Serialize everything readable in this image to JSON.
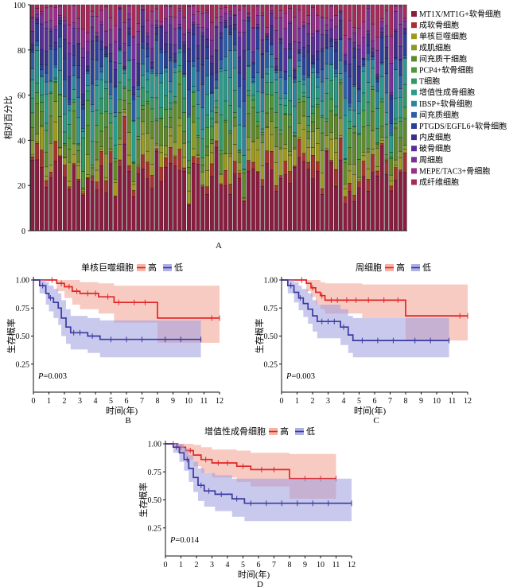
{
  "chart_data": [
    {
      "type": "bar",
      "stacked": true,
      "panel_label": "A",
      "ylabel": "相对百分比",
      "ylim": [
        0,
        100
      ],
      "yticks": [
        "0",
        "20",
        "40",
        "60",
        "80",
        "100"
      ],
      "n_samples": 82,
      "legend_position": "right",
      "series": [
        {
          "name": "MT1X/MT1G+软骨细胞",
          "color": "#8b1c3f"
        },
        {
          "name": "成软骨细胞",
          "color": "#a8322c"
        },
        {
          "name": "单核巨噬细胞",
          "color": "#9e9a1e"
        },
        {
          "name": "成肌细胞",
          "color": "#8a9a2a"
        },
        {
          "name": "间充质干细胞",
          "color": "#5f8a2a"
        },
        {
          "name": "PCP4+软骨细胞",
          "color": "#4e9a3a"
        },
        {
          "name": "T细胞",
          "color": "#2f9a66"
        },
        {
          "name": "增值性成骨细胞",
          "color": "#2a9a8a"
        },
        {
          "name": "IBSP+软骨细胞",
          "color": "#2a86a0"
        },
        {
          "name": "间充质细胞",
          "color": "#2a5fa8"
        },
        {
          "name": "PTGDS/EGFL6+软骨细胞",
          "color": "#2a3f9a"
        },
        {
          "name": "内皮细胞",
          "color": "#3a2f8a"
        },
        {
          "name": "破骨细胞",
          "color": "#5a2f9a"
        },
        {
          "name": "周细胞",
          "color": "#7a2f9a"
        },
        {
          "name": "MEPE/TAC3+骨细胞",
          "color": "#9a2f8a"
        },
        {
          "name": "成纤维细胞",
          "color": "#a82a5a"
        }
      ]
    },
    {
      "type": "line",
      "subtype": "kaplan-meier",
      "panel_label": "B",
      "title": "单核巨噬细胞",
      "xlabel": "时间(年)",
      "ylabel": "生存概率",
      "xlim": [
        0,
        12
      ],
      "ylim": [
        0.25,
        1.0
      ],
      "xticks": [
        "0",
        "1",
        "2",
        "3",
        "4",
        "5",
        "6",
        "7",
        "8",
        "9",
        "10",
        "11",
        "12"
      ],
      "yticks": [
        "0.25",
        "0.50",
        "0.75",
        "1.00"
      ],
      "annotation": "P=0.003",
      "series": [
        {
          "name": "高",
          "color": "#e02626",
          "band_color": "#f2a090",
          "steps": [
            [
              0,
              1.0
            ],
            [
              1.5,
              0.97
            ],
            [
              2.0,
              0.94
            ],
            [
              2.5,
              0.9
            ],
            [
              3.0,
              0.88
            ],
            [
              4.2,
              0.85
            ],
            [
              5.2,
              0.8
            ],
            [
              8.0,
              0.66
            ],
            [
              12.0,
              0.66
            ]
          ],
          "lower": [
            [
              0,
              1.0
            ],
            [
              1.5,
              0.9
            ],
            [
              2.0,
              0.84
            ],
            [
              2.5,
              0.78
            ],
            [
              3.0,
              0.74
            ],
            [
              4.2,
              0.7
            ],
            [
              5.2,
              0.62
            ],
            [
              8.0,
              0.44
            ],
            [
              12.0,
              0.44
            ]
          ],
          "upper": [
            [
              0,
              1.0
            ],
            [
              1.5,
              1.0
            ],
            [
              2.0,
              1.0
            ],
            [
              2.5,
              1.0
            ],
            [
              3.0,
              0.98
            ],
            [
              4.2,
              0.97
            ],
            [
              5.2,
              0.95
            ],
            [
              8.0,
              0.95
            ],
            [
              12.0,
              0.95
            ]
          ],
          "censors": [
            1.2,
            1.8,
            2.3,
            2.8,
            3.5,
            4.0,
            4.8,
            5.5,
            6.5,
            7.2,
            11.5,
            12.0
          ]
        },
        {
          "name": "低",
          "color": "#3a3aa0",
          "band_color": "#9c9ce0",
          "steps": [
            [
              0,
              1.0
            ],
            [
              0.4,
              0.95
            ],
            [
              0.8,
              0.88
            ],
            [
              1.0,
              0.84
            ],
            [
              1.3,
              0.8
            ],
            [
              1.6,
              0.75
            ],
            [
              1.8,
              0.66
            ],
            [
              2.1,
              0.58
            ],
            [
              2.4,
              0.53
            ],
            [
              3.5,
              0.5
            ],
            [
              4.3,
              0.47
            ],
            [
              10.8,
              0.47
            ]
          ],
          "lower": [
            [
              0,
              1.0
            ],
            [
              0.4,
              0.88
            ],
            [
              0.8,
              0.78
            ],
            [
              1.0,
              0.72
            ],
            [
              1.3,
              0.66
            ],
            [
              1.6,
              0.6
            ],
            [
              1.8,
              0.5
            ],
            [
              2.1,
              0.43
            ],
            [
              2.4,
              0.38
            ],
            [
              3.5,
              0.35
            ],
            [
              4.3,
              0.31
            ],
            [
              10.8,
              0.31
            ]
          ],
          "upper": [
            [
              0,
              1.0
            ],
            [
              0.4,
              1.0
            ],
            [
              0.8,
              0.98
            ],
            [
              1.0,
              0.95
            ],
            [
              1.3,
              0.92
            ],
            [
              1.6,
              0.88
            ],
            [
              1.8,
              0.82
            ],
            [
              2.1,
              0.74
            ],
            [
              2.4,
              0.68
            ],
            [
              3.5,
              0.66
            ],
            [
              4.3,
              0.64
            ],
            [
              10.8,
              0.64
            ]
          ],
          "censors": [
            0.6,
            1.1,
            2.6,
            3.0,
            3.8,
            5.0,
            6.0,
            7.0,
            8.5,
            9.5,
            10.8
          ]
        }
      ]
    },
    {
      "type": "line",
      "subtype": "kaplan-meier",
      "panel_label": "C",
      "title": "周细胞",
      "xlabel": "时间(年)",
      "ylabel": "生存概率",
      "xlim": [
        0,
        12
      ],
      "ylim": [
        0.25,
        1.0
      ],
      "xticks": [
        "0",
        "1",
        "2",
        "3",
        "4",
        "5",
        "6",
        "7",
        "8",
        "9",
        "10",
        "11",
        "12"
      ],
      "yticks": [
        "0.25",
        "0.50",
        "0.75",
        "1.00"
      ],
      "annotation": "P=0.003",
      "series": [
        {
          "name": "高",
          "color": "#e02626",
          "band_color": "#f2a090",
          "steps": [
            [
              0,
              1.0
            ],
            [
              1.6,
              0.97
            ],
            [
              1.9,
              0.93
            ],
            [
              2.2,
              0.89
            ],
            [
              2.5,
              0.86
            ],
            [
              2.8,
              0.82
            ],
            [
              5.2,
              0.82
            ],
            [
              8.0,
              0.68
            ],
            [
              12.0,
              0.68
            ]
          ],
          "lower": [
            [
              0,
              1.0
            ],
            [
              1.6,
              0.9
            ],
            [
              1.9,
              0.85
            ],
            [
              2.2,
              0.78
            ],
            [
              2.5,
              0.74
            ],
            [
              2.8,
              0.7
            ],
            [
              5.2,
              0.66
            ],
            [
              8.0,
              0.46
            ],
            [
              12.0,
              0.46
            ]
          ],
          "upper": [
            [
              0,
              1.0
            ],
            [
              1.6,
              1.0
            ],
            [
              1.9,
              1.0
            ],
            [
              2.2,
              1.0
            ],
            [
              2.5,
              0.98
            ],
            [
              2.8,
              0.97
            ],
            [
              5.2,
              0.96
            ],
            [
              8.0,
              0.96
            ],
            [
              12.0,
              0.96
            ]
          ],
          "censors": [
            1.3,
            2.0,
            2.6,
            3.2,
            3.6,
            4.2,
            4.8,
            5.6,
            6.6,
            7.5,
            11.5,
            12.0
          ]
        },
        {
          "name": "低",
          "color": "#3a3aa0",
          "band_color": "#9c9ce0",
          "steps": [
            [
              0,
              1.0
            ],
            [
              0.4,
              0.95
            ],
            [
              0.8,
              0.89
            ],
            [
              1.1,
              0.84
            ],
            [
              1.4,
              0.79
            ],
            [
              1.7,
              0.74
            ],
            [
              2.0,
              0.68
            ],
            [
              2.3,
              0.63
            ],
            [
              3.8,
              0.58
            ],
            [
              4.3,
              0.51
            ],
            [
              4.6,
              0.46
            ],
            [
              10.8,
              0.46
            ]
          ],
          "lower": [
            [
              0,
              1.0
            ],
            [
              0.4,
              0.88
            ],
            [
              0.8,
              0.8
            ],
            [
              1.1,
              0.73
            ],
            [
              1.4,
              0.67
            ],
            [
              1.7,
              0.61
            ],
            [
              2.0,
              0.54
            ],
            [
              2.3,
              0.48
            ],
            [
              3.8,
              0.42
            ],
            [
              4.3,
              0.35
            ],
            [
              4.6,
              0.31
            ],
            [
              10.8,
              0.31
            ]
          ],
          "upper": [
            [
              0,
              1.0
            ],
            [
              0.4,
              1.0
            ],
            [
              0.8,
              0.98
            ],
            [
              1.1,
              0.95
            ],
            [
              1.3,
              0.92
            ],
            [
              1.7,
              0.88
            ],
            [
              2.0,
              0.82
            ],
            [
              2.3,
              0.78
            ],
            [
              3.8,
              0.74
            ],
            [
              4.3,
              0.68
            ],
            [
              4.6,
              0.66
            ],
            [
              10.8,
              0.66
            ]
          ],
          "censors": [
            0.6,
            1.2,
            2.6,
            3.0,
            3.4,
            4.0,
            5.2,
            6.2,
            7.2,
            8.6,
            9.6,
            10.8
          ]
        }
      ]
    },
    {
      "type": "line",
      "subtype": "kaplan-meier",
      "panel_label": "D",
      "title": "增值性成骨细胞",
      "xlabel": "时间(年)",
      "ylabel": "生存概率",
      "xlim": [
        0,
        12
      ],
      "ylim": [
        0.25,
        1.0
      ],
      "xticks": [
        "0",
        "1",
        "2",
        "3",
        "4",
        "5",
        "6",
        "7",
        "8",
        "9",
        "10",
        "11",
        "12"
      ],
      "yticks": [
        "0.25",
        "0.50",
        "0.75",
        "1.00"
      ],
      "annotation": "P=0.014",
      "series": [
        {
          "name": "高",
          "color": "#e02626",
          "band_color": "#f2a090",
          "steps": [
            [
              0,
              1.0
            ],
            [
              0.8,
              0.97
            ],
            [
              1.3,
              0.94
            ],
            [
              1.8,
              0.9
            ],
            [
              2.3,
              0.86
            ],
            [
              3.0,
              0.83
            ],
            [
              4.6,
              0.8
            ],
            [
              5.5,
              0.77
            ],
            [
              8.0,
              0.69
            ],
            [
              11.0,
              0.69
            ]
          ],
          "lower": [
            [
              0,
              1.0
            ],
            [
              0.8,
              0.92
            ],
            [
              1.3,
              0.86
            ],
            [
              1.8,
              0.8
            ],
            [
              2.3,
              0.74
            ],
            [
              3.0,
              0.7
            ],
            [
              4.6,
              0.66
            ],
            [
              5.5,
              0.62
            ],
            [
              8.0,
              0.51
            ],
            [
              11.0,
              0.51
            ]
          ],
          "upper": [
            [
              0,
              1.0
            ],
            [
              0.8,
              1.0
            ],
            [
              1.3,
              1.0
            ],
            [
              1.8,
              0.99
            ],
            [
              2.3,
              0.97
            ],
            [
              3.0,
              0.95
            ],
            [
              4.6,
              0.94
            ],
            [
              5.5,
              0.92
            ],
            [
              8.0,
              0.91
            ],
            [
              11.0,
              0.91
            ]
          ],
          "censors": [
            0.5,
            1.0,
            1.6,
            2.6,
            3.4,
            4.0,
            5.0,
            6.2,
            7.0,
            9.0,
            10.0,
            11.0
          ]
        },
        {
          "name": "低",
          "color": "#3a3aa0",
          "band_color": "#9c9ce0",
          "steps": [
            [
              0,
              1.0
            ],
            [
              0.5,
              0.97
            ],
            [
              0.9,
              0.92
            ],
            [
              1.2,
              0.86
            ],
            [
              1.5,
              0.78
            ],
            [
              1.8,
              0.7
            ],
            [
              2.1,
              0.63
            ],
            [
              2.5,
              0.58
            ],
            [
              3.2,
              0.55
            ],
            [
              4.3,
              0.51
            ],
            [
              5.1,
              0.47
            ],
            [
              12.0,
              0.47
            ]
          ],
          "lower": [
            [
              0,
              1.0
            ],
            [
              0.5,
              0.92
            ],
            [
              0.9,
              0.84
            ],
            [
              1.2,
              0.76
            ],
            [
              1.5,
              0.66
            ],
            [
              1.8,
              0.57
            ],
            [
              2.1,
              0.49
            ],
            [
              2.5,
              0.44
            ],
            [
              3.2,
              0.4
            ],
            [
              4.3,
              0.35
            ],
            [
              5.1,
              0.31
            ],
            [
              12.0,
              0.31
            ]
          ],
          "upper": [
            [
              0,
              1.0
            ],
            [
              0.5,
              1.0
            ],
            [
              0.9,
              1.0
            ],
            [
              1.2,
              0.96
            ],
            [
              1.5,
              0.9
            ],
            [
              1.8,
              0.84
            ],
            [
              2.1,
              0.78
            ],
            [
              2.5,
              0.74
            ],
            [
              3.2,
              0.72
            ],
            [
              4.3,
              0.69
            ],
            [
              5.1,
              0.69
            ],
            [
              12.0,
              0.69
            ]
          ],
          "censors": [
            0.7,
            1.4,
            2.3,
            2.8,
            3.6,
            4.6,
            5.5,
            6.5,
            7.5,
            8.5,
            9.5,
            10.5,
            12.0
          ]
        }
      ]
    }
  ]
}
